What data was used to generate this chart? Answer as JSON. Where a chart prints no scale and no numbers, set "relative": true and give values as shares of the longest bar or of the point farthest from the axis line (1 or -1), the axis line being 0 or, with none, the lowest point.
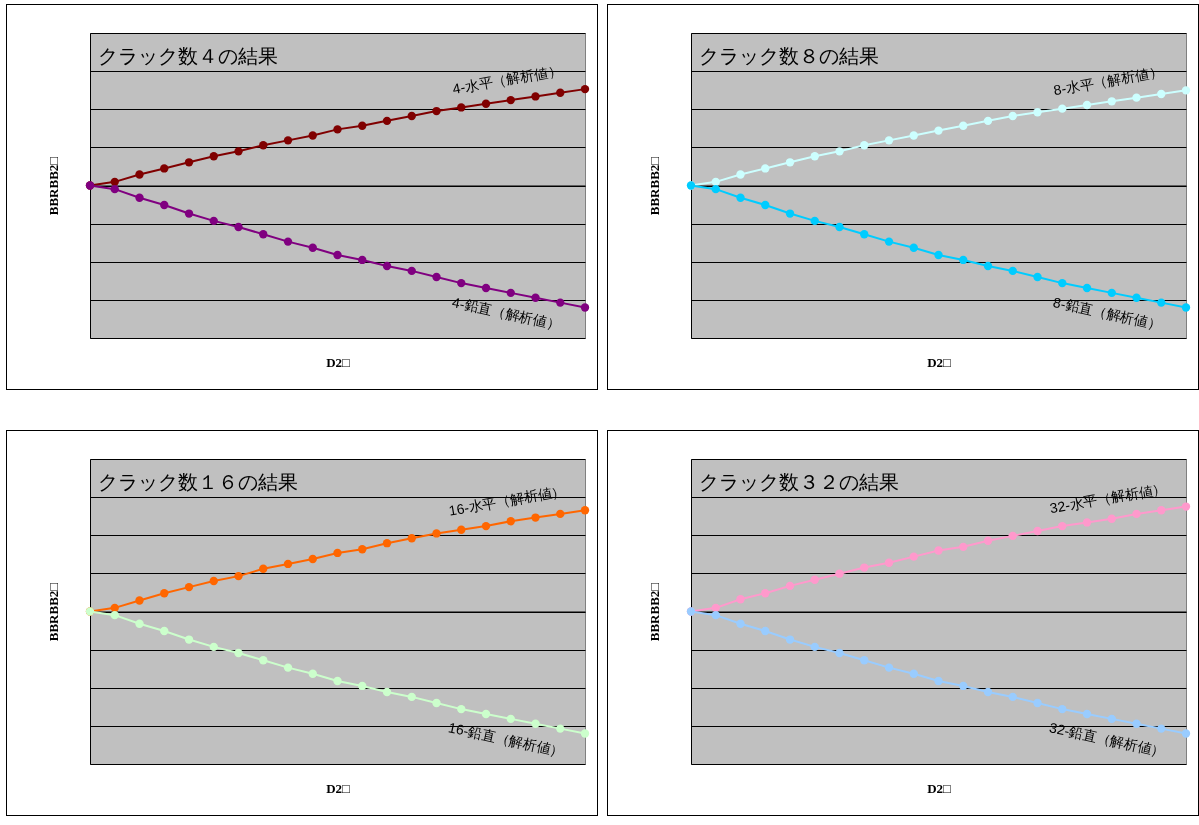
{
  "chart_data": [
    {
      "type": "line",
      "title": "クラック数４の結果",
      "xlabel": "D2□",
      "ylabel": "BBRBB2□",
      "relative": true,
      "grid": "y",
      "marker": "circle",
      "categories": [
        null,
        null,
        null,
        null,
        null,
        null,
        null,
        null,
        null,
        null,
        null,
        null,
        null,
        null,
        null,
        null,
        null,
        null,
        null,
        null,
        null
      ],
      "series": [
        {
          "name": "4-水平（解析値）",
          "color": "#800000",
          "values": [
            0,
            0.03,
            0.09,
            0.14,
            0.19,
            0.24,
            0.28,
            0.33,
            0.37,
            0.41,
            0.46,
            0.49,
            0.53,
            0.57,
            0.61,
            0.64,
            0.67,
            0.7,
            0.73,
            0.76,
            0.79
          ]
        },
        {
          "name": "4-鉛直（解析値）",
          "color": "#800080",
          "values": [
            0,
            -0.03,
            -0.1,
            -0.16,
            -0.23,
            -0.29,
            -0.34,
            -0.4,
            -0.46,
            -0.51,
            -0.57,
            -0.61,
            -0.66,
            -0.7,
            -0.75,
            -0.8,
            -0.84,
            -0.88,
            -0.92,
            -0.96,
            -1
          ]
        }
      ]
    },
    {
      "type": "line",
      "title": "クラック数８の結果",
      "xlabel": "D2□",
      "ylabel": "BBRBB2□",
      "relative": true,
      "grid": "y",
      "marker": "circle",
      "categories": [
        null,
        null,
        null,
        null,
        null,
        null,
        null,
        null,
        null,
        null,
        null,
        null,
        null,
        null,
        null,
        null,
        null,
        null,
        null,
        null,
        null
      ],
      "series": [
        {
          "name": "8-水平（解析値）",
          "color": "#ccffff",
          "values": [
            0,
            0.03,
            0.09,
            0.14,
            0.19,
            0.24,
            0.28,
            0.33,
            0.37,
            0.41,
            0.45,
            0.49,
            0.53,
            0.57,
            0.6,
            0.63,
            0.66,
            0.69,
            0.72,
            0.75,
            0.78
          ]
        },
        {
          "name": "8-鉛直（解析値）",
          "color": "#00ccff",
          "values": [
            0,
            -0.03,
            -0.1,
            -0.16,
            -0.23,
            -0.29,
            -0.34,
            -0.4,
            -0.46,
            -0.51,
            -0.57,
            -0.61,
            -0.66,
            -0.7,
            -0.75,
            -0.8,
            -0.84,
            -0.88,
            -0.92,
            -0.96,
            -1
          ]
        }
      ]
    },
    {
      "type": "line",
      "title": "クラック数１６の結果",
      "xlabel": "D2□",
      "ylabel": "BBRBB2□",
      "relative": true,
      "grid": "y",
      "marker": "circle",
      "categories": [
        null,
        null,
        null,
        null,
        null,
        null,
        null,
        null,
        null,
        null,
        null,
        null,
        null,
        null,
        null,
        null,
        null,
        null,
        null,
        null,
        null
      ],
      "series": [
        {
          "name": "16-水平（解析値）",
          "color": "#ff6600",
          "values": [
            0,
            0.03,
            0.09,
            0.15,
            0.2,
            0.25,
            0.29,
            0.35,
            0.39,
            0.43,
            0.48,
            0.51,
            0.56,
            0.6,
            0.64,
            0.67,
            0.7,
            0.74,
            0.77,
            0.8,
            0.83
          ]
        },
        {
          "name": "16-鉛直（解析値）",
          "color": "#ccffcc",
          "values": [
            0,
            -0.03,
            -0.1,
            -0.16,
            -0.23,
            -0.29,
            -0.34,
            -0.4,
            -0.46,
            -0.51,
            -0.57,
            -0.61,
            -0.66,
            -0.7,
            -0.75,
            -0.8,
            -0.84,
            -0.88,
            -0.92,
            -0.96,
            -1
          ]
        }
      ]
    },
    {
      "type": "line",
      "title": "クラック数３２の結果",
      "xlabel": "D2□",
      "ylabel": "BBRBB2□",
      "relative": true,
      "grid": "y",
      "marker": "circle",
      "categories": [
        null,
        null,
        null,
        null,
        null,
        null,
        null,
        null,
        null,
        null,
        null,
        null,
        null,
        null,
        null,
        null,
        null,
        null,
        null,
        null,
        null
      ],
      "series": [
        {
          "name": "32-水平（解析値）",
          "color": "#ff99cc",
          "values": [
            0,
            0.03,
            0.1,
            0.15,
            0.21,
            0.26,
            0.31,
            0.36,
            0.4,
            0.45,
            0.5,
            0.53,
            0.58,
            0.62,
            0.66,
            0.7,
            0.73,
            0.76,
            0.8,
            0.83,
            0.86
          ]
        },
        {
          "name": "32-鉛直（解析値）",
          "color": "#99ccff",
          "values": [
            0,
            -0.03,
            -0.1,
            -0.16,
            -0.23,
            -0.29,
            -0.34,
            -0.4,
            -0.46,
            -0.51,
            -0.57,
            -0.61,
            -0.66,
            -0.7,
            -0.75,
            -0.8,
            -0.84,
            -0.88,
            -0.92,
            -0.96,
            -1
          ]
        }
      ]
    }
  ]
}
